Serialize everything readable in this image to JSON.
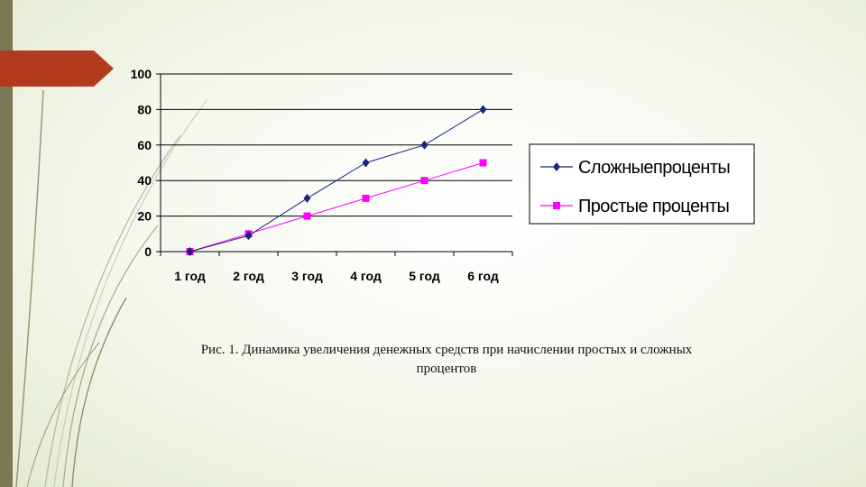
{
  "slide": {
    "accent_color": "#b23a1f",
    "bar_color": "#7b7856",
    "caption_line1": "Рис. 1. Динамика увеличения денежных средств при начислении простых и сложных",
    "caption_line2": "процентов"
  },
  "chart_data": {
    "type": "line",
    "categories": [
      "1 год",
      "2 год",
      "3 год",
      "4 год",
      "5 год",
      "6 год"
    ],
    "ylim": [
      0,
      100
    ],
    "yticks": [
      0,
      20,
      40,
      60,
      80,
      100
    ],
    "grid": true,
    "legend_position": "right",
    "series": [
      {
        "name": "Сложныепроценты",
        "color": "#1a237e",
        "marker": "diamond",
        "values": [
          0,
          9,
          30,
          50,
          60,
          80
        ]
      },
      {
        "name": "Простые проценты",
        "color": "#ff00ff",
        "marker": "square",
        "values": [
          0,
          10,
          20,
          30,
          40,
          50
        ]
      }
    ]
  }
}
